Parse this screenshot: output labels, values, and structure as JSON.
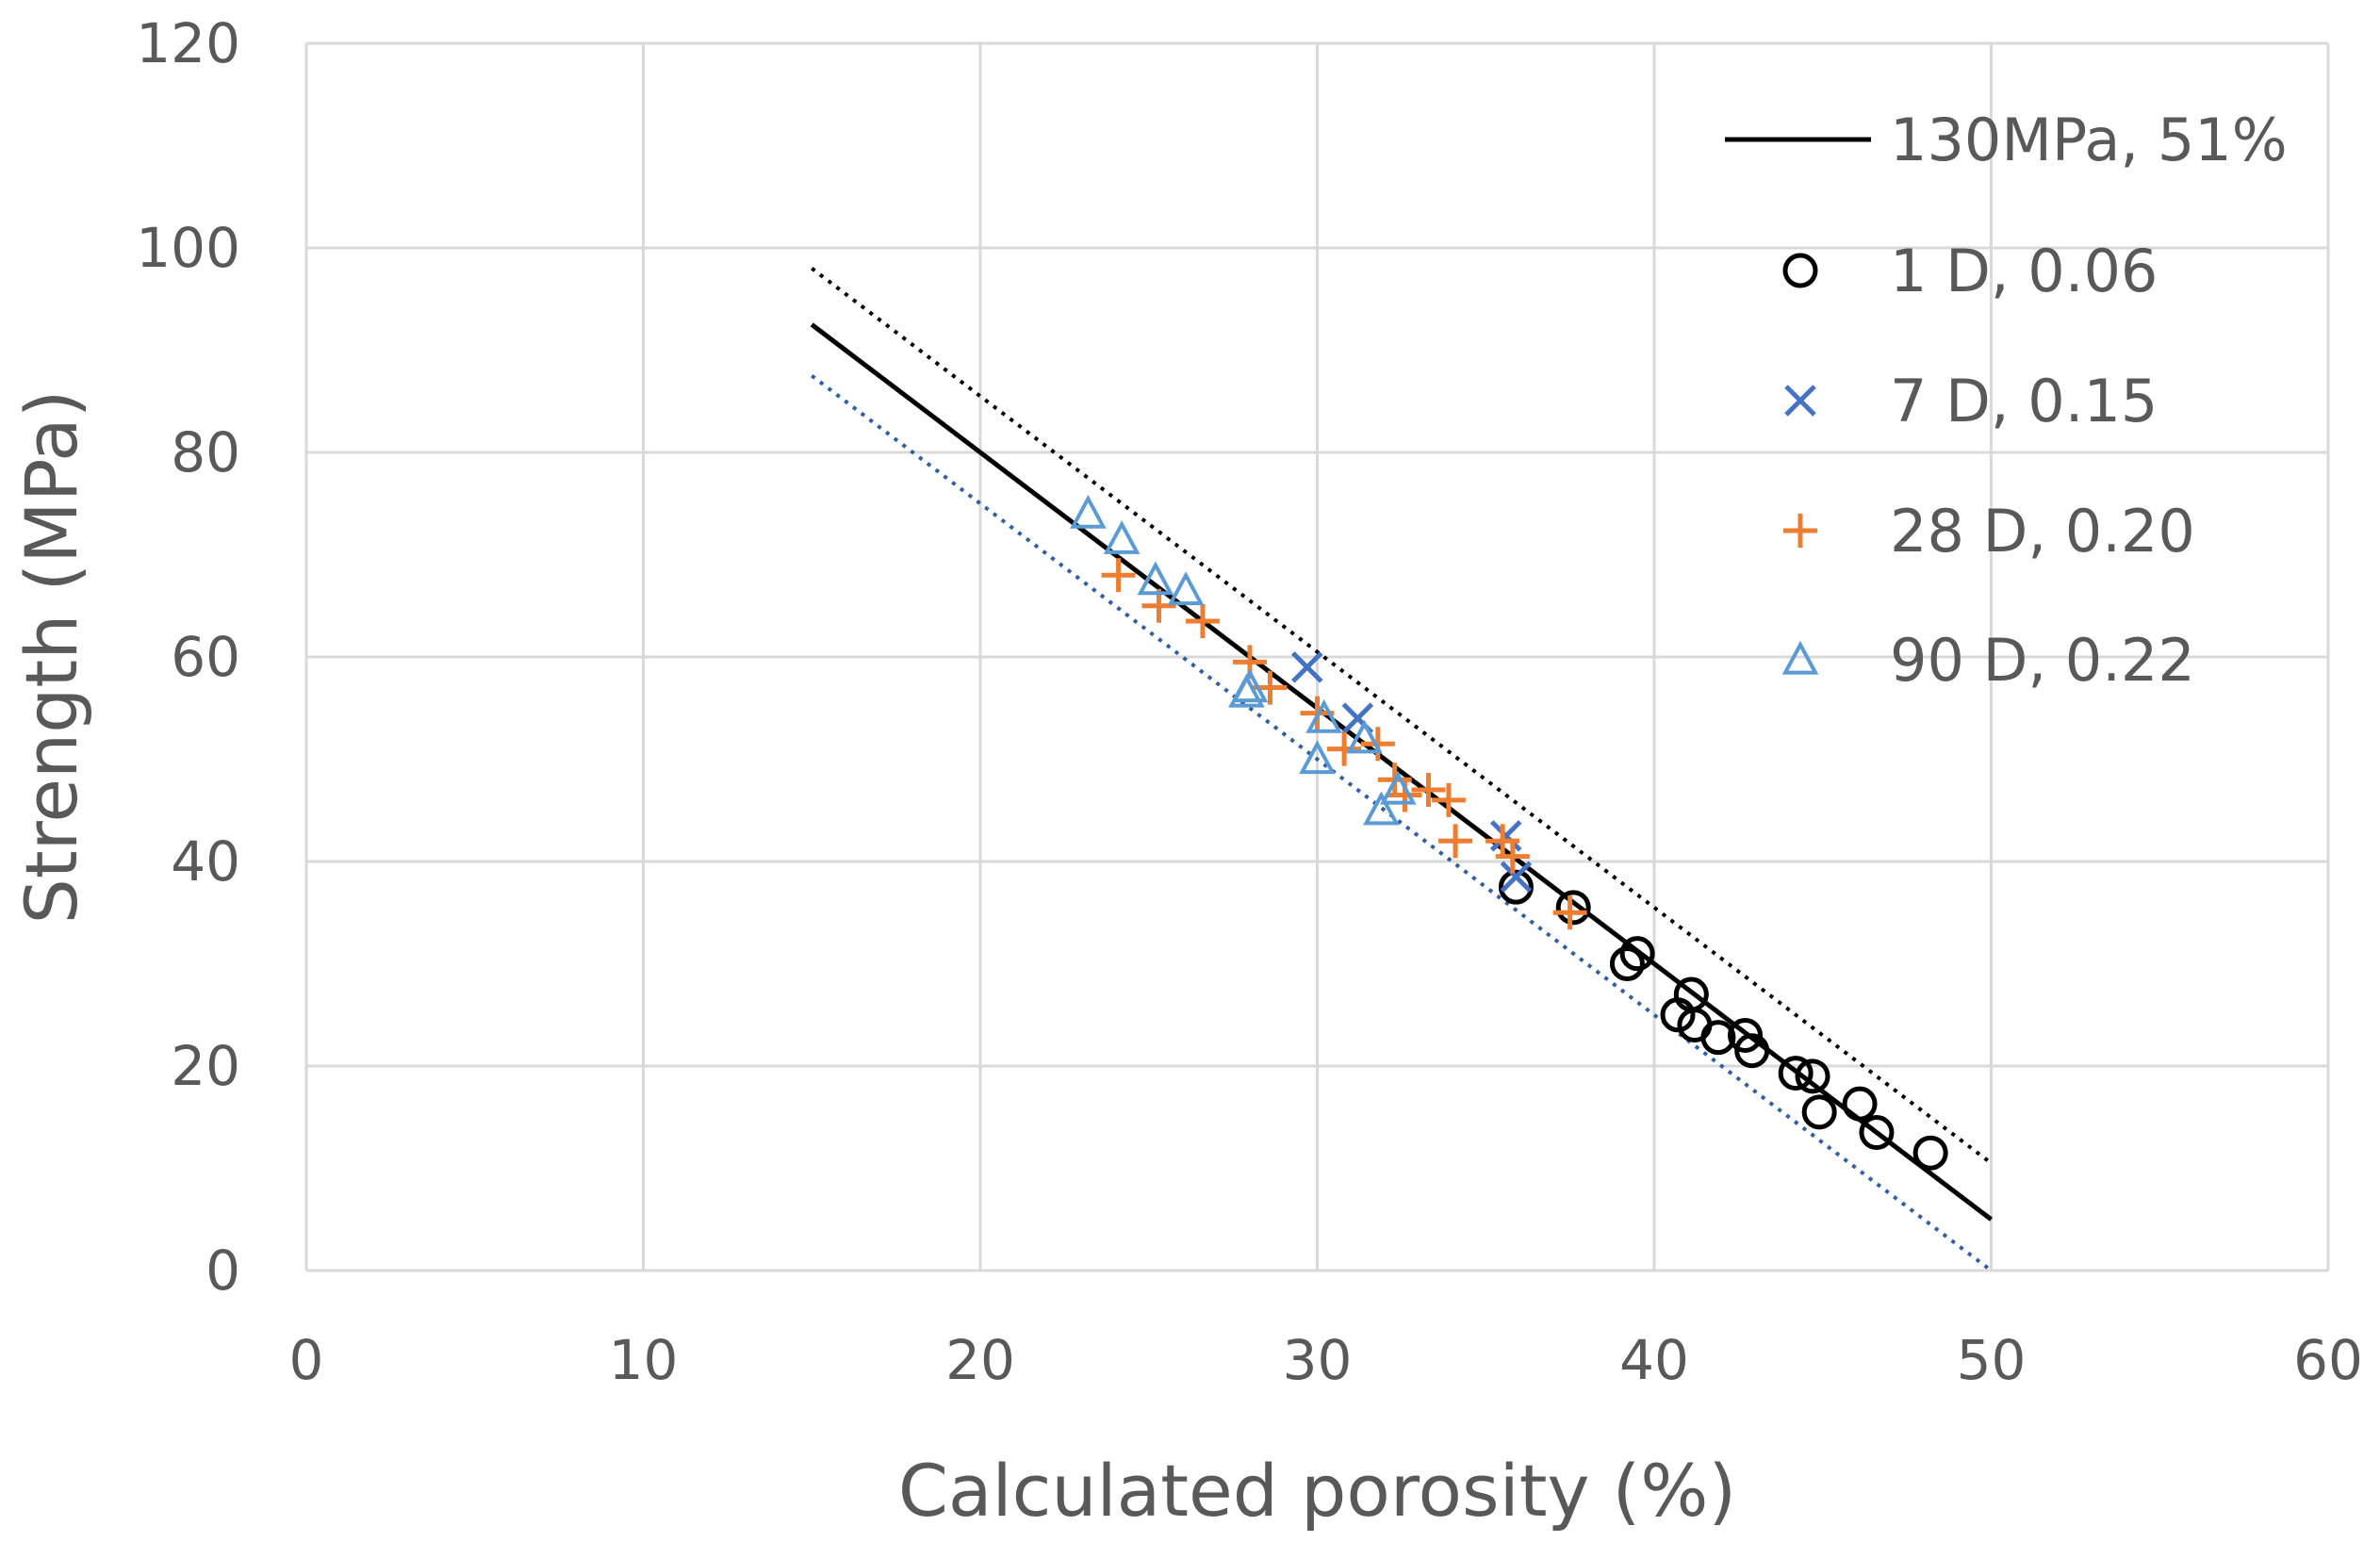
{
  "chart_data": {
    "type": "scatter",
    "xlabel": "Calculated porosity (%)",
    "ylabel": "Strength (MPa)",
    "xlim": [
      0,
      60
    ],
    "ylim": [
      0,
      120
    ],
    "x_ticks": [
      "0",
      "10",
      "20",
      "30",
      "40",
      "50",
      "60"
    ],
    "y_ticks": [
      "0",
      "20",
      "40",
      "60",
      "80",
      "100",
      "120"
    ],
    "grid": true,
    "legend_position": "top-right",
    "fit_lines": [
      {
        "name": "130MPa, 51%",
        "style": "solid",
        "color": "#000000",
        "points": [
          [
            15,
            92.5
          ],
          [
            50,
            5
          ]
        ]
      },
      {
        "style": "dotted",
        "color": "#000000",
        "points": [
          [
            15,
            98
          ],
          [
            50,
            10.5
          ]
        ]
      },
      {
        "style": "dotted",
        "color": "#2e5fa5",
        "points": [
          [
            15,
            87.5
          ],
          [
            50,
            0
          ]
        ]
      }
    ],
    "series": [
      {
        "name": "1 D, 0.06",
        "marker": "circle",
        "color": "#000000",
        "points": [
          [
            35.9,
            37.5
          ],
          [
            37.6,
            35.5
          ],
          [
            39.2,
            30
          ],
          [
            39.5,
            31
          ],
          [
            40.7,
            25
          ],
          [
            41.1,
            27
          ],
          [
            41.2,
            24
          ],
          [
            41.9,
            22.8
          ],
          [
            42.7,
            23
          ],
          [
            42.9,
            21.5
          ],
          [
            44.2,
            19.3
          ],
          [
            44.7,
            19
          ],
          [
            44.9,
            15.5
          ],
          [
            46.1,
            16.3
          ],
          [
            46.6,
            13.5
          ],
          [
            48.2,
            11.5
          ]
        ]
      },
      {
        "name": "7 D, 0.15",
        "marker": "x",
        "color": "#4472c4",
        "points": [
          [
            29.7,
            59
          ],
          [
            31.2,
            54
          ],
          [
            35.6,
            42.5
          ],
          [
            35.9,
            38.5
          ]
        ]
      },
      {
        "name": "28 D, 0.20",
        "marker": "plus",
        "color": "#ed7d31",
        "points": [
          [
            24.1,
            68
          ],
          [
            25.3,
            65
          ],
          [
            26.6,
            63.5
          ],
          [
            28.0,
            59.5
          ],
          [
            28.6,
            57
          ],
          [
            30.0,
            54.5
          ],
          [
            30.8,
            51
          ],
          [
            31.8,
            51.5
          ],
          [
            32.3,
            48
          ],
          [
            32.6,
            46.5
          ],
          [
            33.3,
            47
          ],
          [
            33.9,
            46
          ],
          [
            34.1,
            42
          ],
          [
            35.5,
            42
          ],
          [
            35.8,
            40.5
          ],
          [
            37.5,
            35
          ]
        ]
      },
      {
        "name": "90 D, 0.22",
        "marker": "triangle",
        "color": "#5b9bd5",
        "points": [
          [
            23.2,
            74
          ],
          [
            24.2,
            71.5
          ],
          [
            25.2,
            67.5
          ],
          [
            26.1,
            66.5
          ],
          [
            27.9,
            56.5
          ],
          [
            28.0,
            57
          ],
          [
            30.0,
            50
          ],
          [
            30.2,
            54
          ],
          [
            31.4,
            52
          ],
          [
            31.9,
            45
          ],
          [
            32.4,
            47
          ]
        ]
      }
    ]
  }
}
